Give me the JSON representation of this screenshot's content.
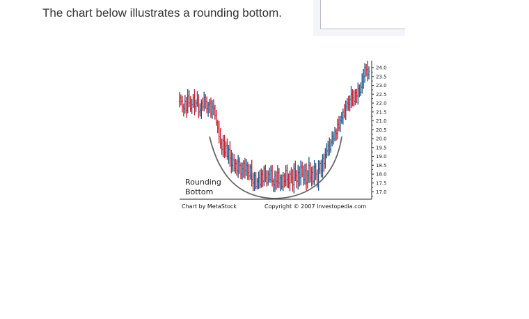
{
  "intro": {
    "text": "The chart below illustrates a rounding bottom."
  },
  "chart_data": {
    "type": "candlestick",
    "title": "",
    "xlabel": "",
    "ylabel": "",
    "ylim": [
      16.7,
      24.3
    ],
    "y_ticks": [
      "24.0",
      "23.5",
      "23.0",
      "22.5",
      "22.0",
      "21.5",
      "21.0",
      "20.5",
      "20.0",
      "19.5",
      "19.0",
      "18.5",
      "18.0",
      "17.5",
      "17.0"
    ],
    "y_axis_side": "right",
    "grid": false,
    "annotation_lines": [
      "Rounding",
      "Bottom"
    ],
    "footer_left": "Chart by MetaStock",
    "footer_right": "Copyright © 2007 Investopedia.com",
    "colors": {
      "up": "#1d5a8c",
      "down": "#d02230",
      "arc": "#666666",
      "axis": "#222222"
    },
    "closes": [
      22.3,
      22.1,
      21.8,
      21.7,
      22.1,
      21.6,
      22.4,
      22.0,
      21.7,
      21.9,
      22.3,
      21.8,
      22.0,
      22.2,
      21.5,
      21.6,
      22.0,
      21.8,
      22.3,
      22.1,
      21.7,
      21.9,
      22.0,
      21.4,
      21.8,
      21.7,
      21.3,
      20.9,
      20.6,
      20.1,
      19.7,
      19.4,
      19.9,
      19.2,
      19.6,
      19.0,
      19.4,
      18.9,
      18.5,
      18.8,
      18.3,
      18.6,
      18.2,
      18.7,
      18.5,
      18.0,
      18.3,
      18.6,
      18.2,
      18.5,
      18.1,
      17.9,
      18.4,
      17.7,
      17.5,
      17.9,
      17.3,
      17.6,
      17.8,
      17.4,
      18.0,
      17.6,
      18.3,
      17.8,
      17.5,
      18.0,
      17.7,
      18.2,
      17.6,
      17.4,
      17.9,
      17.6,
      18.1,
      17.5,
      17.8,
      17.3,
      17.9,
      17.6,
      18.2,
      17.7,
      17.5,
      18.0,
      17.8,
      17.4,
      18.3,
      17.9,
      17.6,
      18.1,
      17.8,
      18.4,
      18.0,
      17.7,
      18.2,
      17.5,
      17.9,
      18.5,
      17.8,
      18.1,
      17.6,
      18.4,
      18.0,
      17.4,
      18.3,
      18.6,
      18.2,
      18.9,
      18.6,
      19.1,
      19.3,
      19.6,
      19.4,
      19.8,
      20.1,
      20.0,
      20.4,
      20.3,
      20.8,
      20.6,
      21.0,
      21.2,
      21.5,
      21.3,
      21.8,
      22.0,
      21.9,
      22.2,
      22.5,
      22.3,
      22.1,
      22.6,
      22.4,
      22.8,
      22.6,
      22.9,
      23.2,
      23.5,
      24.0,
      23.9,
      23.6,
      23.8
    ]
  }
}
